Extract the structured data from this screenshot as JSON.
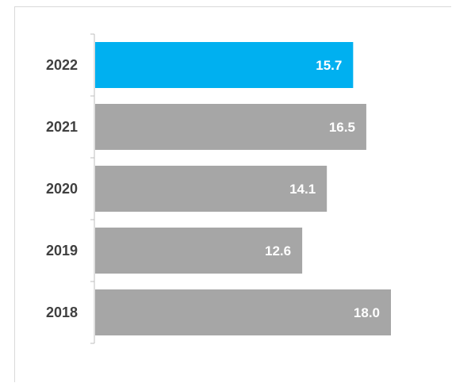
{
  "chart_data": {
    "type": "bar",
    "orientation": "horizontal",
    "categories": [
      "2022",
      "2021",
      "2020",
      "2019",
      "2018"
    ],
    "values": [
      15.7,
      16.5,
      14.1,
      12.6,
      18.0
    ],
    "value_labels": [
      "15.7",
      "16.5",
      "14.1",
      "12.6",
      "18.0"
    ],
    "title": "",
    "xlabel": "",
    "ylabel": "",
    "xlim": [
      0,
      21
    ],
    "grid": false,
    "legend": "none",
    "colors": {
      "highlight": "#00b0f0",
      "default": "#a6a6a6",
      "category_text": "#404040",
      "value_text": "#ffffff",
      "axis": "#bfbfbf"
    },
    "highlight_index": 0
  }
}
